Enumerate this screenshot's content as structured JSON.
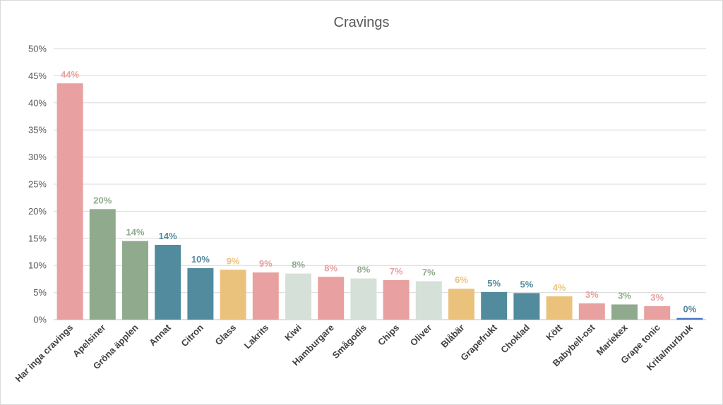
{
  "chart_data": {
    "type": "bar",
    "title": "Cravings",
    "xlabel": "",
    "ylabel": "",
    "ylim": [
      0,
      50
    ],
    "y_ticks": [
      "0%",
      "5%",
      "10%",
      "15%",
      "20%",
      "25%",
      "30%",
      "35%",
      "40%",
      "45%",
      "50%"
    ],
    "grid": true,
    "legend": "none",
    "categories": [
      "Har inga cravings",
      "Apelsiner",
      "Gröna äpplen",
      "Annat",
      "Citron",
      "Glass",
      "Lakrits",
      "Kiwi",
      "Hamburgare",
      "Smågodis",
      "Chips",
      "Oliver",
      "Blåbär",
      "Grapefrukt",
      "Choklad",
      "Kött",
      "Babybell-ost",
      "Mariekex",
      "Grape tonic",
      "Krita/murbruk"
    ],
    "values": [
      43.6,
      20.4,
      14.5,
      13.8,
      9.5,
      9.2,
      8.7,
      8.5,
      7.9,
      7.6,
      7.3,
      7.1,
      5.7,
      5.1,
      4.9,
      4.3,
      3.0,
      2.8,
      2.5,
      0.3
    ],
    "data_labels": [
      "44%",
      "20%",
      "14%",
      "14%",
      "10%",
      "9%",
      "9%",
      "8%",
      "8%",
      "8%",
      "7%",
      "7%",
      "6%",
      "5%",
      "5%",
      "4%",
      "3%",
      "3%",
      "3%",
      "0%"
    ],
    "bar_colors": [
      "#E8A0A0",
      "#8FAA8C",
      "#8FAA8C",
      "#528A9E",
      "#528A9E",
      "#EBC27C",
      "#E8A0A0",
      "#D5E1D8",
      "#E8A0A0",
      "#D5E1D8",
      "#E8A0A0",
      "#D5E1D8",
      "#EBC27C",
      "#528A9E",
      "#528A9E",
      "#EBC27C",
      "#E8A0A0",
      "#8FAA8C",
      "#E8A0A0",
      "#4472C4"
    ],
    "label_colors": [
      "#E8A0A0",
      "#8FAA8C",
      "#8FAA8C",
      "#528A9E",
      "#528A9E",
      "#EBC27C",
      "#E8A0A0",
      "#8FAA8C",
      "#E8A0A0",
      "#8FAA8C",
      "#E8A0A0",
      "#8FAA8C",
      "#EBC27C",
      "#528A9E",
      "#528A9E",
      "#EBC27C",
      "#E8A0A0",
      "#8FAA8C",
      "#E8A0A0",
      "#528A9E"
    ]
  }
}
